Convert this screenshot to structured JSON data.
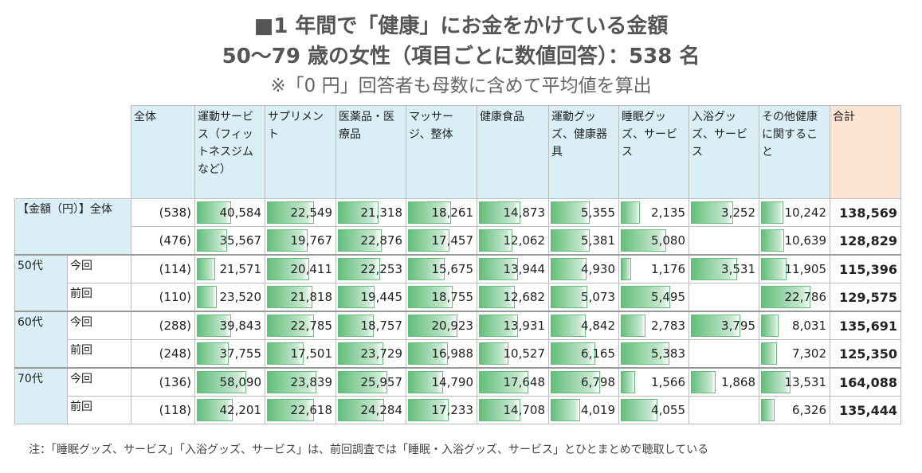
{
  "title": {
    "line1": "■1 年間で「健康」にお金をかけている金額",
    "line2": "50～79 歳の女性（項目ごとに数値回答）：538 名",
    "line3": "※「0 円」回答者も母数に含めて平均値を算出"
  },
  "headers": {
    "label_blank": "",
    "all": "全体",
    "cols": [
      "運動サービス（フィットネスジムなど）",
      "サプリメント",
      "医薬品・医療品",
      "マッサージ、整体",
      "健康食品",
      "運動グッズ、健康器具",
      "睡眠グッズ、サービス",
      "入浴グッズ、サービス",
      "その他健康に関すること"
    ],
    "total": "合計"
  },
  "rows": [
    {
      "group": "【金額（円）】全体",
      "sub": "",
      "n": "(538)",
      "vals": [
        "40,584",
        "22,549",
        "21,318",
        "18,261",
        "14,873",
        "5,355",
        "2,135",
        "3,252",
        "10,242"
      ],
      "total": "138,569"
    },
    {
      "group": "",
      "sub": "",
      "n": "(476)",
      "vals": [
        "35,567",
        "19,767",
        "22,876",
        "17,457",
        "12,062",
        "5,381",
        "5,080",
        "",
        "10,639"
      ],
      "total": "128,829"
    },
    {
      "group": "50代",
      "sub": "今回",
      "n": "(114)",
      "vals": [
        "21,571",
        "20,411",
        "22,253",
        "15,675",
        "13,944",
        "4,930",
        "1,176",
        "3,531",
        "11,905"
      ],
      "total": "115,396"
    },
    {
      "group": "",
      "sub": "前回",
      "n": "(110)",
      "vals": [
        "23,520",
        "21,818",
        "19,445",
        "18,755",
        "12,682",
        "5,073",
        "5,495",
        "",
        "22,786"
      ],
      "total": "129,575"
    },
    {
      "group": "60代",
      "sub": "今回",
      "n": "(288)",
      "vals": [
        "39,843",
        "22,785",
        "18,757",
        "20,923",
        "13,931",
        "4,842",
        "2,783",
        "3,795",
        "8,031"
      ],
      "total": "135,691"
    },
    {
      "group": "",
      "sub": "前回",
      "n": "(248)",
      "vals": [
        "37,755",
        "17,501",
        "23,729",
        "16,988",
        "10,527",
        "6,165",
        "5,383",
        "",
        "7,302"
      ],
      "total": "125,350"
    },
    {
      "group": "70代",
      "sub": "今回",
      "n": "(136)",
      "vals": [
        "58,090",
        "23,839",
        "25,957",
        "14,790",
        "17,648",
        "6,798",
        "1,566",
        "1,868",
        "13,531"
      ],
      "total": "164,088"
    },
    {
      "group": "",
      "sub": "前回",
      "n": "(118)",
      "vals": [
        "42,201",
        "22,618",
        "24,284",
        "17,233",
        "14,708",
        "4,019",
        "4,055",
        "",
        "6,326"
      ],
      "total": "135,444"
    }
  ],
  "footnote": "注：「睡眠グッズ、サービス」「入浴グッズ、サービス」は、前回調査では「睡眠・入浴グッズ、サービス」とひとまとめで聴取している",
  "bar_color": "#63be7b"
}
